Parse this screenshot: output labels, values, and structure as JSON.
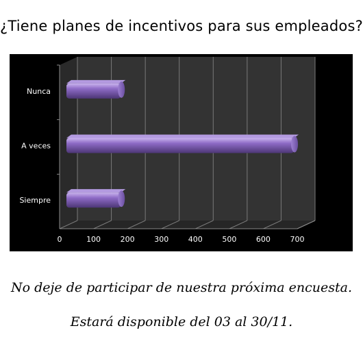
{
  "title": "¿Tiene planes de incentivos para sus empleados?",
  "footer": {
    "line1": "No deje de participar de nuestra próxima encuesta.",
    "line2": "Estará disponible del 03 al 30/11."
  },
  "colors": {
    "background": "#000000",
    "plot_wall": "#3a3a3a",
    "bar": "#7d5cb3",
    "bar_highlight": "#c0a8e8",
    "bar_shadow": "#4b3574",
    "text": "#ffffff"
  },
  "chart_data": {
    "type": "bar",
    "orientation": "horizontal",
    "three_d": true,
    "title": "",
    "xlabel": "",
    "ylabel": "",
    "categories": [
      "Nunca",
      "A veces",
      "Siempre"
    ],
    "values": [
      180,
      690,
      180
    ],
    "xlim": [
      0,
      700
    ],
    "xticks": [
      "0",
      "100",
      "200",
      "300",
      "400",
      "500",
      "600",
      "700"
    ],
    "grid": true,
    "legend": "none"
  }
}
